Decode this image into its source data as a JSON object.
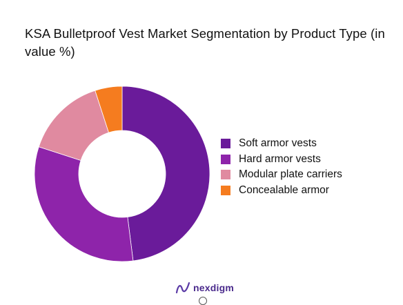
{
  "title": "KSA Bulletproof Vest Market Segmentation by Product Type (in value %)",
  "brand": {
    "name": "nexdigm"
  },
  "edge_glyph": ")",
  "chart_data": {
    "type": "pie",
    "variant": "donut",
    "title": "KSA Bulletproof Vest Market Segmentation by Product Type (in value %)",
    "categories": [
      "Soft armor vests",
      "Hard armor vests",
      "Modular plate carriers",
      "Concealable armor"
    ],
    "values": [
      48,
      32,
      15,
      5
    ],
    "colors": [
      "#6a1b9a",
      "#8e24aa",
      "#e08aa0",
      "#f57c1f"
    ],
    "legend_position": "right",
    "start_angle": "12 o'clock",
    "direction": "clockwise"
  }
}
